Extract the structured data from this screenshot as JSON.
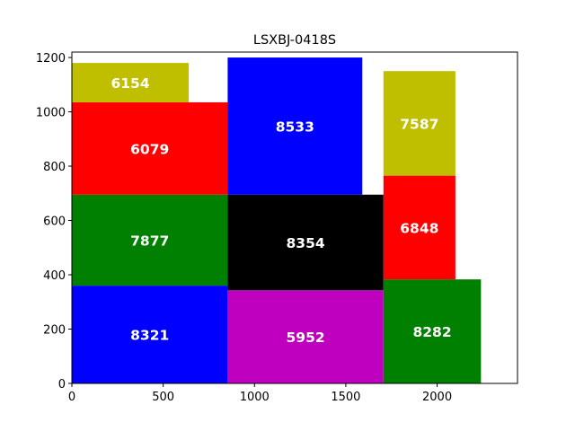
{
  "chart_data": {
    "type": "packing",
    "title": "LSXBJ-0418S",
    "xlabel": "",
    "ylabel": "",
    "xlim": [
      0,
      2440
    ],
    "ylim": [
      0,
      1220
    ],
    "xticks": [
      0,
      500,
      1000,
      1500,
      2000
    ],
    "yticks": [
      0,
      200,
      400,
      600,
      800,
      1000,
      1200
    ],
    "grid": false,
    "colors": {
      "blue": "#0000ff",
      "magenta": "#bf00bf",
      "green": "#008000",
      "red": "#ff0000",
      "black": "#000000",
      "olive": "#bfbf00"
    },
    "rects": [
      {
        "label": "8321",
        "x": 0,
        "y": 0,
        "w": 853,
        "h": 360,
        "color": "#0000ff"
      },
      {
        "label": "7877",
        "x": 0,
        "y": 360,
        "w": 853,
        "h": 335,
        "color": "#008000"
      },
      {
        "label": "6079",
        "x": 0,
        "y": 695,
        "w": 853,
        "h": 340,
        "color": "#ff0000"
      },
      {
        "label": "6154",
        "x": 0,
        "y": 1035,
        "w": 640,
        "h": 145,
        "color": "#bfbf00"
      },
      {
        "label": "5952",
        "x": 853,
        "y": 0,
        "w": 853,
        "h": 343,
        "color": "#bf00bf"
      },
      {
        "label": "8354",
        "x": 853,
        "y": 343,
        "w": 853,
        "h": 352,
        "color": "#000000"
      },
      {
        "label": "8533",
        "x": 853,
        "y": 695,
        "w": 737,
        "h": 505,
        "color": "#0000ff"
      },
      {
        "label": "8282",
        "x": 1706,
        "y": 0,
        "w": 534,
        "h": 383,
        "color": "#008000"
      },
      {
        "label": "6848",
        "x": 1706,
        "y": 383,
        "w": 394,
        "h": 382,
        "color": "#ff0000"
      },
      {
        "label": "7587",
        "x": 1706,
        "y": 765,
        "w": 394,
        "h": 385,
        "color": "#bfbf00"
      }
    ]
  }
}
